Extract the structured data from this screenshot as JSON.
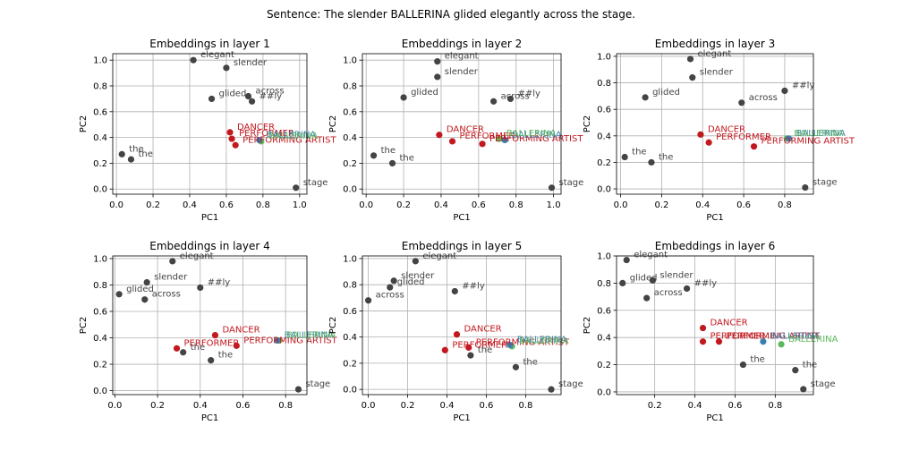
{
  "figure_title": "Sentence: The slender BALLERINA glided elegantly across the stage.",
  "colors": {
    "context": "#444444",
    "related": "#c2191f",
    "target": "#3b7fb0",
    "reference": "#5bb85b"
  },
  "chart_data": [
    {
      "type": "scatter",
      "title": "Embeddings in layer 1",
      "xlabel": "PC1",
      "ylabel": "PC2",
      "xlim": [
        -0.02,
        1.04
      ],
      "ylim": [
        -0.04,
        1.05
      ],
      "xticks": [
        0.0,
        0.2,
        0.4,
        0.6,
        0.8,
        1.0
      ],
      "xtick_labels": [
        "0.0",
        "0.2",
        "0.4",
        "0.6",
        "0.8",
        "1.0"
      ],
      "yticks": [
        0.0,
        0.2,
        0.4,
        0.6,
        0.8,
        1.0
      ],
      "ytick_labels": [
        "0.0",
        "0.2",
        "0.4",
        "0.6",
        "0.8",
        "1.0"
      ],
      "grid": true,
      "points": [
        {
          "label": "the",
          "x": 0.03,
          "y": 0.27,
          "group": "context"
        },
        {
          "label": "the",
          "x": 0.08,
          "y": 0.23,
          "group": "context"
        },
        {
          "label": "elegant",
          "x": 0.42,
          "y": 1.0,
          "group": "context"
        },
        {
          "label": "slender",
          "x": 0.6,
          "y": 0.94,
          "group": "context"
        },
        {
          "label": "glided",
          "x": 0.52,
          "y": 0.7,
          "group": "context"
        },
        {
          "label": "across",
          "x": 0.72,
          "y": 0.72,
          "group": "context"
        },
        {
          "label": "##ly",
          "x": 0.74,
          "y": 0.68,
          "group": "context"
        },
        {
          "label": "DANCER",
          "x": 0.62,
          "y": 0.44,
          "group": "related"
        },
        {
          "label": "PERFORMER",
          "x": 0.63,
          "y": 0.39,
          "group": "related"
        },
        {
          "label": "PERFORMING ARTIST",
          "x": 0.65,
          "y": 0.34,
          "group": "related"
        },
        {
          "label": "BALLERINA",
          "x": 0.78,
          "y": 0.38,
          "group": "target"
        },
        {
          "label": "BALLERINA",
          "x": 0.79,
          "y": 0.37,
          "group": "reference"
        },
        {
          "label": "stage",
          "x": 0.98,
          "y": 0.01,
          "group": "context"
        }
      ]
    },
    {
      "type": "scatter",
      "title": "Embeddings in layer 2",
      "xlabel": "PC1",
      "ylabel": "PC2",
      "xlim": [
        -0.02,
        1.04
      ],
      "ylim": [
        -0.04,
        1.05
      ],
      "xticks": [
        0.0,
        0.2,
        0.4,
        0.6,
        0.8,
        1.0
      ],
      "xtick_labels": [
        "0.0",
        "0.2",
        "0.4",
        "0.6",
        "0.8",
        "1.0"
      ],
      "yticks": [
        0.0,
        0.2,
        0.4,
        0.6,
        0.8,
        1.0
      ],
      "ytick_labels": [
        "0.0",
        "0.2",
        "0.4",
        "0.6",
        "0.8",
        "1.0"
      ],
      "grid": true,
      "points": [
        {
          "label": "the",
          "x": 0.04,
          "y": 0.26,
          "group": "context"
        },
        {
          "label": "the",
          "x": 0.14,
          "y": 0.2,
          "group": "context"
        },
        {
          "label": "elegant",
          "x": 0.38,
          "y": 0.99,
          "group": "context"
        },
        {
          "label": "slender",
          "x": 0.38,
          "y": 0.87,
          "group": "context"
        },
        {
          "label": "glided",
          "x": 0.2,
          "y": 0.71,
          "group": "context"
        },
        {
          "label": "across",
          "x": 0.68,
          "y": 0.68,
          "group": "context"
        },
        {
          "label": "##ly",
          "x": 0.77,
          "y": 0.7,
          "group": "context"
        },
        {
          "label": "DANCER",
          "x": 0.39,
          "y": 0.42,
          "group": "related"
        },
        {
          "label": "PERFORMER",
          "x": 0.46,
          "y": 0.37,
          "group": "related"
        },
        {
          "label": "PERFORMING ARTIST",
          "x": 0.62,
          "y": 0.35,
          "group": "related"
        },
        {
          "label": "BALLERINA",
          "x": 0.74,
          "y": 0.38,
          "group": "target"
        },
        {
          "label": "BALLERINA",
          "x": 0.71,
          "y": 0.39,
          "group": "reference"
        },
        {
          "label": "stage",
          "x": 0.99,
          "y": 0.01,
          "group": "context"
        }
      ]
    },
    {
      "type": "scatter",
      "title": "Embeddings in layer 3",
      "xlabel": "PC1",
      "ylabel": "PC2",
      "xlim": [
        -0.02,
        0.94
      ],
      "ylim": [
        -0.04,
        1.02
      ],
      "xticks": [
        0.0,
        0.2,
        0.4,
        0.6,
        0.8
      ],
      "xtick_labels": [
        "0.0",
        "0.2",
        "0.4",
        "0.6",
        "0.8"
      ],
      "yticks": [
        0.0,
        0.2,
        0.4,
        0.6,
        0.8,
        1.0
      ],
      "ytick_labels": [
        "0.0",
        "0.2",
        "0.4",
        "0.6",
        "0.8",
        "1.0"
      ],
      "grid": true,
      "points": [
        {
          "label": "the",
          "x": 0.02,
          "y": 0.24,
          "group": "context"
        },
        {
          "label": "the",
          "x": 0.15,
          "y": 0.2,
          "group": "context"
        },
        {
          "label": "elegant",
          "x": 0.34,
          "y": 0.98,
          "group": "context"
        },
        {
          "label": "slender",
          "x": 0.35,
          "y": 0.84,
          "group": "context"
        },
        {
          "label": "glided",
          "x": 0.12,
          "y": 0.69,
          "group": "context"
        },
        {
          "label": "across",
          "x": 0.59,
          "y": 0.65,
          "group": "context"
        },
        {
          "label": "##ly",
          "x": 0.8,
          "y": 0.74,
          "group": "context"
        },
        {
          "label": "DANCER",
          "x": 0.39,
          "y": 0.41,
          "group": "related"
        },
        {
          "label": "PERFORMER",
          "x": 0.43,
          "y": 0.35,
          "group": "related"
        },
        {
          "label": "PERFORMING ARTIST",
          "x": 0.65,
          "y": 0.32,
          "group": "related"
        },
        {
          "label": "BALLERINA",
          "x": 0.82,
          "y": 0.38,
          "group": "target"
        },
        {
          "label": "BALLERINA",
          "x": 0.81,
          "y": 0.38,
          "group": "reference"
        },
        {
          "label": "stage",
          "x": 0.9,
          "y": 0.01,
          "group": "context"
        }
      ]
    },
    {
      "type": "scatter",
      "title": "Embeddings in layer 4",
      "xlabel": "PC1",
      "ylabel": "PC2",
      "xlim": [
        -0.01,
        0.9
      ],
      "ylim": [
        -0.03,
        1.02
      ],
      "xticks": [
        0.0,
        0.2,
        0.4,
        0.6,
        0.8
      ],
      "xtick_labels": [
        "0.0",
        "0.2",
        "0.4",
        "0.6",
        "0.8"
      ],
      "yticks": [
        0.0,
        0.2,
        0.4,
        0.6,
        0.8,
        1.0
      ],
      "ytick_labels": [
        "0.0",
        "0.2",
        "0.4",
        "0.6",
        "0.8",
        "1.0"
      ],
      "grid": true,
      "points": [
        {
          "label": "glided",
          "x": 0.02,
          "y": 0.73,
          "group": "context"
        },
        {
          "label": "slender",
          "x": 0.15,
          "y": 0.82,
          "group": "context"
        },
        {
          "label": "elegant",
          "x": 0.27,
          "y": 0.98,
          "group": "context"
        },
        {
          "label": "across",
          "x": 0.14,
          "y": 0.69,
          "group": "context"
        },
        {
          "label": "##ly",
          "x": 0.4,
          "y": 0.78,
          "group": "context"
        },
        {
          "label": "the",
          "x": 0.32,
          "y": 0.29,
          "group": "context"
        },
        {
          "label": "the",
          "x": 0.45,
          "y": 0.23,
          "group": "context"
        },
        {
          "label": "DANCER",
          "x": 0.47,
          "y": 0.42,
          "group": "related"
        },
        {
          "label": "PERFORMER",
          "x": 0.29,
          "y": 0.32,
          "group": "related"
        },
        {
          "label": "PERFORMING ARTIST",
          "x": 0.57,
          "y": 0.34,
          "group": "related"
        },
        {
          "label": "BALLERINA",
          "x": 0.76,
          "y": 0.38,
          "group": "target"
        },
        {
          "label": "BALLERINA",
          "x": 0.77,
          "y": 0.38,
          "group": "reference"
        },
        {
          "label": "stage",
          "x": 0.86,
          "y": 0.01,
          "group": "context"
        }
      ]
    },
    {
      "type": "scatter",
      "title": "Embeddings in layer 5",
      "xlabel": "PC1",
      "ylabel": "PC2",
      "xlim": [
        -0.03,
        0.98
      ],
      "ylim": [
        -0.04,
        1.02
      ],
      "xticks": [
        0.0,
        0.2,
        0.4,
        0.6,
        0.8
      ],
      "xtick_labels": [
        "0.0",
        "0.2",
        "0.4",
        "0.6",
        "0.8"
      ],
      "yticks": [
        0.0,
        0.2,
        0.4,
        0.6,
        0.8,
        1.0
      ],
      "ytick_labels": [
        "0.0",
        "0.2",
        "0.4",
        "0.6",
        "0.8",
        "1.0"
      ],
      "grid": true,
      "points": [
        {
          "label": "across",
          "x": 0.0,
          "y": 0.68,
          "group": "context"
        },
        {
          "label": "glided",
          "x": 0.11,
          "y": 0.78,
          "group": "context"
        },
        {
          "label": "slender",
          "x": 0.13,
          "y": 0.83,
          "group": "context"
        },
        {
          "label": "elegant",
          "x": 0.24,
          "y": 0.98,
          "group": "context"
        },
        {
          "label": "##ly",
          "x": 0.44,
          "y": 0.75,
          "group": "context"
        },
        {
          "label": "the",
          "x": 0.52,
          "y": 0.26,
          "group": "context"
        },
        {
          "label": "the",
          "x": 0.75,
          "y": 0.17,
          "group": "context"
        },
        {
          "label": "DANCER",
          "x": 0.45,
          "y": 0.42,
          "group": "related"
        },
        {
          "label": "PERFORMER",
          "x": 0.39,
          "y": 0.3,
          "group": "related"
        },
        {
          "label": "PERFORMING ARTIST",
          "x": 0.51,
          "y": 0.32,
          "group": "related"
        },
        {
          "label": "BALLERINA",
          "x": 0.72,
          "y": 0.34,
          "group": "target"
        },
        {
          "label": "BALLERINA",
          "x": 0.73,
          "y": 0.33,
          "group": "reference"
        },
        {
          "label": "stage",
          "x": 0.93,
          "y": 0.0,
          "group": "context"
        }
      ]
    },
    {
      "type": "scatter",
      "title": "Embeddings in layer 6",
      "xlabel": "PC1",
      "ylabel": "PC2",
      "xlim": [
        0.01,
        0.99
      ],
      "ylim": [
        -0.02,
        1.0
      ],
      "xticks": [
        0.2,
        0.4,
        0.6,
        0.8
      ],
      "xtick_labels": [
        "0.2",
        "0.4",
        "0.6",
        "0.8"
      ],
      "yticks": [
        0.0,
        0.2,
        0.4,
        0.6,
        0.8,
        1.0
      ],
      "ytick_labels": [
        "0.0",
        "0.2",
        "0.4",
        "0.6",
        "0.8",
        "1.0"
      ],
      "grid": true,
      "points": [
        {
          "label": "elegant",
          "x": 0.06,
          "y": 0.97,
          "group": "context"
        },
        {
          "label": "glided",
          "x": 0.04,
          "y": 0.8,
          "group": "context"
        },
        {
          "label": "slender",
          "x": 0.19,
          "y": 0.82,
          "group": "context"
        },
        {
          "label": "across",
          "x": 0.16,
          "y": 0.69,
          "group": "context"
        },
        {
          "label": "##ly",
          "x": 0.36,
          "y": 0.76,
          "group": "context"
        },
        {
          "label": "the",
          "x": 0.64,
          "y": 0.2,
          "group": "context"
        },
        {
          "label": "the",
          "x": 0.9,
          "y": 0.16,
          "group": "context"
        },
        {
          "label": "DANCER",
          "x": 0.44,
          "y": 0.47,
          "group": "related"
        },
        {
          "label": "PERFORMER",
          "x": 0.44,
          "y": 0.37,
          "group": "related"
        },
        {
          "label": "PERFORMING ARTIST",
          "x": 0.52,
          "y": 0.37,
          "group": "related"
        },
        {
          "label": "BALLERINA",
          "x": 0.74,
          "y": 0.37,
          "group": "target"
        },
        {
          "label": "BALLERINA",
          "x": 0.83,
          "y": 0.35,
          "group": "reference"
        },
        {
          "label": "stage",
          "x": 0.94,
          "y": 0.02,
          "group": "context"
        }
      ]
    }
  ]
}
